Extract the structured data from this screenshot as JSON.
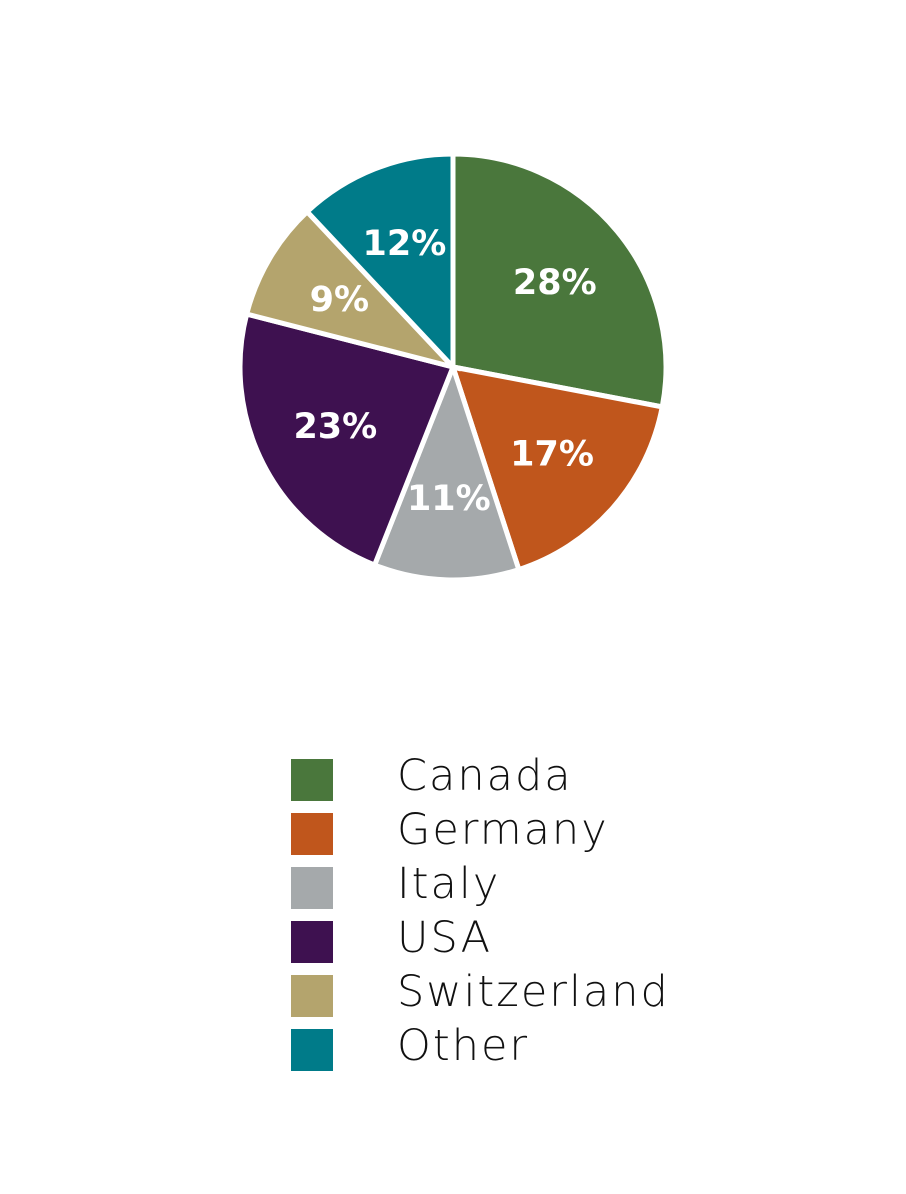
{
  "chart_data": {
    "type": "pie",
    "title": "",
    "slices": [
      {
        "name": "Canada",
        "value": 28,
        "label": "28%",
        "color": "#4a773c"
      },
      {
        "name": "Germany",
        "value": 17,
        "label": "17%",
        "color": "#c0561c"
      },
      {
        "name": "Italy",
        "value": 11,
        "label": "11%",
        "color": "#a5a9ab"
      },
      {
        "name": "USA",
        "value": 23,
        "label": "23%",
        "color": "#3e1150"
      },
      {
        "name": "Switzerland",
        "value": 9,
        "label": "9%",
        "color": "#b4a46d"
      },
      {
        "name": "Other",
        "value": 12,
        "label": "12%",
        "color": "#007b89"
      }
    ],
    "legend_position": "bottom"
  }
}
